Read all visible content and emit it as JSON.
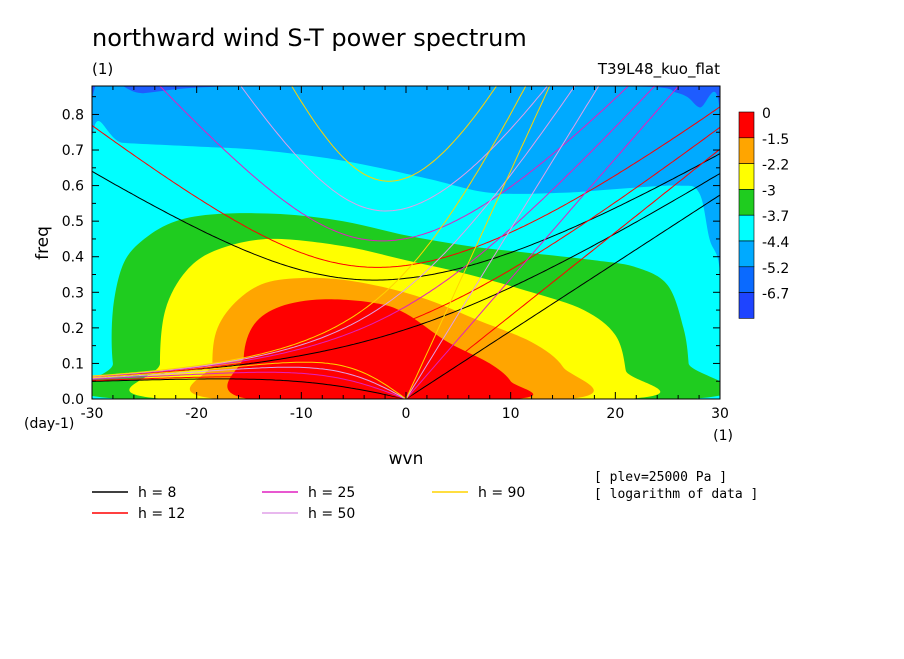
{
  "chart_data": {
    "type": "heatmap",
    "title": "northward wind S-T power spectrum",
    "subtitle_left": "(1)",
    "subtitle_right": "T39L48_kuo_flat",
    "xlabel": "wvn",
    "ylabel": "freq",
    "x_unit": "(1)",
    "y_unit": "(day-1)",
    "xlim": [
      -30,
      30
    ],
    "ylim": [
      0,
      0.88
    ],
    "x_ticks": [
      -30,
      -20,
      -10,
      0,
      10,
      20,
      30
    ],
    "y_ticks": [
      0.0,
      0.1,
      0.2,
      0.3,
      0.4,
      0.5,
      0.6,
      0.7,
      0.8
    ],
    "x_tick_labels": [
      "-30",
      "-20",
      "-10",
      "0",
      "10",
      "20",
      "30"
    ],
    "y_tick_labels": [
      "0.0",
      "0.1",
      "0.2",
      "0.3",
      "0.4",
      "0.5",
      "0.6",
      "0.7",
      "0.8"
    ],
    "colorbar": {
      "levels": [
        "0",
        "-1.5",
        "-2.2",
        "-3",
        "-3.7",
        "-4.4",
        "-5.2",
        "-6.7"
      ],
      "colors": [
        "#ff0000",
        "#ffa500",
        "#ffff00",
        "#1fcc1f",
        "#00ffff",
        "#00aaff",
        "#0a6aff",
        "#1e44ff"
      ]
    },
    "fill_regions": [
      {
        "level": 7,
        "color": "#1e5cff",
        "points": [
          [
            -30,
            0.88
          ],
          [
            30,
            0.88
          ],
          [
            30,
            0.8
          ],
          [
            -30,
            0.8
          ]
        ]
      },
      {
        "level": 6,
        "color": "#00aaff",
        "points": [
          [
            -30,
            0.84
          ],
          [
            -25,
            0.86
          ],
          [
            -15,
            0.88
          ],
          [
            20,
            0.88
          ],
          [
            26,
            0.86
          ],
          [
            28,
            0.82
          ],
          [
            30,
            0.8
          ],
          [
            30,
            0.0
          ],
          [
            -30,
            0.0
          ]
        ]
      },
      {
        "level": 5,
        "color": "#00ffff",
        "points": [
          [
            -30,
            0.73
          ],
          [
            -27,
            0.72
          ],
          [
            -20,
            0.71
          ],
          [
            -14,
            0.7
          ],
          [
            -6,
            0.67
          ],
          [
            2,
            0.62
          ],
          [
            8,
            0.58
          ],
          [
            15,
            0.58
          ],
          [
            20,
            0.59
          ],
          [
            26,
            0.6
          ],
          [
            28,
            0.58
          ],
          [
            29,
            0.45
          ],
          [
            30,
            0.35
          ],
          [
            30,
            0.0
          ],
          [
            -30,
            0.0
          ]
        ]
      },
      {
        "level": 4,
        "color": "#1fcc1f",
        "points": [
          [
            -27,
            0.0
          ],
          [
            -28,
            0.1
          ],
          [
            -28,
            0.25
          ],
          [
            -27,
            0.38
          ],
          [
            -25,
            0.45
          ],
          [
            -22,
            0.5
          ],
          [
            -18,
            0.52
          ],
          [
            -12,
            0.52
          ],
          [
            -6,
            0.5
          ],
          [
            0,
            0.46
          ],
          [
            6,
            0.43
          ],
          [
            12,
            0.41
          ],
          [
            18,
            0.39
          ],
          [
            22,
            0.37
          ],
          [
            25,
            0.32
          ],
          [
            26.5,
            0.2
          ],
          [
            27,
            0.1
          ],
          [
            27,
            0.0
          ]
        ]
      },
      {
        "level": 3,
        "color": "#ffff00",
        "points": [
          [
            -23,
            0.0
          ],
          [
            -23.5,
            0.1
          ],
          [
            -23,
            0.25
          ],
          [
            -21,
            0.36
          ],
          [
            -18,
            0.42
          ],
          [
            -13,
            0.45
          ],
          [
            -6,
            0.43
          ],
          [
            0,
            0.39
          ],
          [
            6,
            0.35
          ],
          [
            12,
            0.3
          ],
          [
            17,
            0.25
          ],
          [
            20,
            0.18
          ],
          [
            21,
            0.08
          ],
          [
            21,
            0.0
          ]
        ]
      },
      {
        "level": 2,
        "color": "#ffa500",
        "points": [
          [
            -18,
            0.0
          ],
          [
            -18.5,
            0.1
          ],
          [
            -18,
            0.2
          ],
          [
            -16,
            0.28
          ],
          [
            -13,
            0.33
          ],
          [
            -8,
            0.34
          ],
          [
            -3,
            0.32
          ],
          [
            2,
            0.28
          ],
          [
            7,
            0.22
          ],
          [
            12,
            0.16
          ],
          [
            15,
            0.09
          ],
          [
            15.5,
            0.0
          ]
        ]
      },
      {
        "level": 1,
        "color": "#ff0000",
        "points": [
          [
            -15,
            0.0
          ],
          [
            -15.5,
            0.12
          ],
          [
            -14.5,
            0.21
          ],
          [
            -12,
            0.26
          ],
          [
            -8,
            0.28
          ],
          [
            -3,
            0.27
          ],
          [
            0,
            0.24
          ],
          [
            4,
            0.16
          ],
          [
            8,
            0.1
          ],
          [
            10,
            0.05
          ],
          [
            10.3,
            0.0
          ]
        ]
      }
    ],
    "dispersion_curves": [
      {
        "h": "8",
        "color": "#000000"
      },
      {
        "h": "12",
        "color": "#ff0000"
      },
      {
        "h": "25",
        "color": "#e020c0"
      },
      {
        "h": "50",
        "color": "#e0a0e8"
      },
      {
        "h": "90",
        "color": "#ffd400"
      }
    ],
    "legend": [
      {
        "label": "h =  8",
        "color": "#000000"
      },
      {
        "label": "h = 12",
        "color": "#ff0000"
      },
      {
        "label": "h = 25",
        "color": "#e020c0"
      },
      {
        "label": "h = 50",
        "color": "#e0a0e8"
      },
      {
        "label": "h = 90",
        "color": "#ffd400"
      }
    ],
    "notes": [
      "[ plev=25000 Pa ]",
      "[ logarithm of data ]"
    ]
  }
}
